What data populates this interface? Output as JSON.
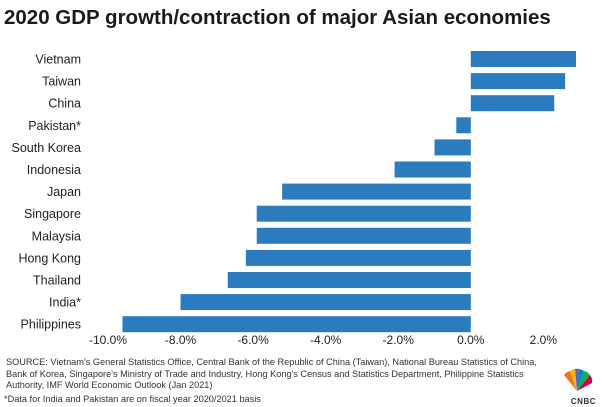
{
  "chart_data": {
    "type": "bar",
    "orientation": "horizontal",
    "title": "2020 GDP growth/contraction of major Asian economies",
    "categories": [
      "Vietnam",
      "Taiwan",
      "China",
      "Pakistan*",
      "South Korea",
      "Indonesia",
      "Japan",
      "Singapore",
      "Malaysia",
      "Hong Kong",
      "Thailand",
      "India*",
      "Philippines"
    ],
    "values": [
      2.9,
      2.6,
      2.3,
      -0.4,
      -1.0,
      -2.1,
      -5.2,
      -5.9,
      -5.9,
      -6.2,
      -6.7,
      -8.0,
      -9.6
    ],
    "xlim": [
      -10,
      2.9
    ],
    "xticks": [
      -10,
      -8,
      -6,
      -4,
      -2,
      0,
      2
    ],
    "xtick_labels": [
      "-10.0%",
      "-8.0%",
      "-6.0%",
      "-4.0%",
      "-2.0%",
      "0.0%",
      "2.0%"
    ],
    "bar_color": "#2b7bbf",
    "grid": false,
    "xlabel": "",
    "ylabel": ""
  },
  "source": "SOURCE: Vietnam's General Statistics Office, Central Bank of the Republic of China (Taiwan), National Bureau Statistics of China, Bank of Korea, Singapore's Ministry of Trade and Industry, Hong Kong's Census and Statistics Department, Philippine Statistics Authority, IMF World Economic Outlook (Jan 2021)",
  "footnote": "*Data for India and Pakistan are on fiscal year 2020/2021 basis",
  "logo": {
    "text": "CNBC",
    "icon": "peacock-icon"
  }
}
